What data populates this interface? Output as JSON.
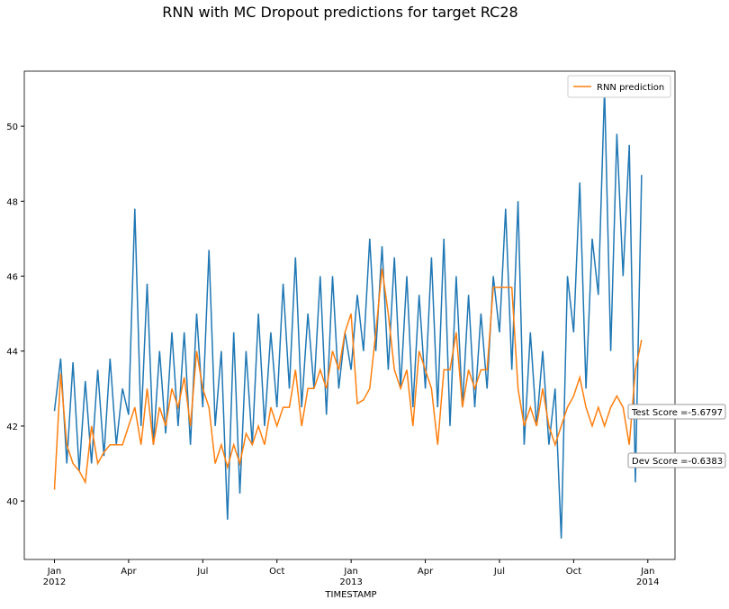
{
  "chart_data": {
    "type": "line",
    "title": "RNN with MC Dropout predictions for target RC28",
    "xlabel": "TIMESTAMP",
    "x": [
      0,
      0.25,
      0.5,
      0.75,
      1,
      1.25,
      1.5,
      1.75,
      2,
      2.25,
      2.5,
      2.75,
      3,
      3.25,
      3.5,
      3.75,
      4,
      4.25,
      4.5,
      4.75,
      5,
      5.25,
      5.5,
      5.75,
      6,
      6.25,
      6.5,
      6.75,
      7,
      7.25,
      7.5,
      7.75,
      8,
      8.25,
      8.5,
      8.75,
      9,
      9.25,
      9.5,
      9.75,
      10,
      10.25,
      10.5,
      10.75,
      11,
      11.25,
      11.5,
      11.75,
      12,
      12.25,
      12.5,
      12.75,
      13,
      13.25,
      13.5,
      13.75,
      14,
      14.25,
      14.5,
      14.75,
      15,
      15.25,
      15.5,
      15.75,
      16,
      16.25,
      16.5,
      16.75,
      17,
      17.25,
      17.5,
      17.75,
      18,
      18.25,
      18.5,
      18.75,
      19,
      19.25,
      19.5,
      19.75,
      20,
      20.25,
      20.5,
      20.75,
      21,
      21.25,
      21.5,
      21.75,
      22,
      22.25,
      22.5,
      22.75,
      23,
      23.25,
      23.5,
      23.75
    ],
    "series": [
      {
        "color": "#1f77b4",
        "values": [
          42.4,
          43.8,
          41.0,
          43.7,
          40.8,
          43.2,
          41.0,
          43.5,
          41.2,
          43.8,
          41.5,
          43.0,
          42.3,
          47.8,
          42.0,
          45.8,
          41.5,
          44.0,
          41.8,
          44.5,
          42.0,
          44.5,
          41.5,
          45.0,
          42.5,
          46.7,
          42.0,
          44.0,
          39.5,
          44.5,
          40.2,
          44.0,
          41.5,
          45.0,
          42.0,
          44.5,
          42.5,
          45.8,
          43.0,
          46.5,
          42.5,
          45.0,
          43.0,
          46.0,
          42.3,
          46.0,
          43.0,
          44.5,
          43.5,
          45.5,
          44.0,
          47.0,
          44.0,
          46.8,
          43.5,
          46.5,
          43.0,
          46.0,
          42.5,
          45.5,
          43.0,
          46.5,
          42.5,
          47.0,
          42.0,
          46.0,
          42.5,
          45.5,
          42.5,
          45.0,
          43.0,
          46.0,
          44.5,
          47.8,
          43.5,
          48.0,
          41.5,
          44.5,
          42.0,
          44.0,
          41.5,
          43.0,
          39.0,
          46.0,
          44.5,
          48.5,
          43.0,
          47.0,
          45.5,
          51.0,
          44.0,
          49.8,
          46.0,
          49.5,
          40.5,
          48.7
        ]
      },
      {
        "name": "RNN prediction",
        "color": "#ff7f0e",
        "values": [
          40.3,
          43.4,
          41.5,
          41.0,
          40.8,
          40.5,
          42.0,
          41.0,
          41.3,
          41.5,
          41.5,
          41.5,
          42.0,
          42.5,
          41.5,
          43.0,
          41.5,
          42.5,
          42.0,
          43.0,
          42.5,
          43.3,
          42.0,
          44.0,
          43.0,
          42.5,
          41.0,
          41.5,
          40.9,
          41.5,
          41.0,
          41.8,
          41.5,
          42.0,
          41.5,
          42.5,
          42.0,
          42.5,
          42.5,
          43.5,
          42.0,
          43.0,
          43.0,
          43.5,
          43.0,
          44.0,
          43.5,
          44.5,
          45.0,
          42.6,
          42.7,
          43.0,
          44.5,
          46.2,
          45.0,
          43.5,
          43.0,
          43.5,
          42.0,
          44.0,
          43.5,
          43.0,
          41.5,
          43.5,
          43.5,
          44.5,
          42.5,
          43.5,
          43.0,
          43.5,
          43.5,
          45.7,
          45.7,
          45.7,
          45.7,
          43.0,
          42.0,
          42.5,
          42.0,
          43.0,
          42.0,
          41.5,
          42.0,
          42.5,
          42.8,
          43.3,
          42.5,
          42.0,
          42.5,
          42.0,
          42.5,
          42.8,
          42.5,
          41.5,
          43.5,
          44.3
        ]
      }
    ],
    "xlim": [
      -1.22,
      25.1
    ],
    "xticks": [
      {
        "value": 0,
        "label": "Jan"
      },
      {
        "value": 3,
        "label": "Apr"
      },
      {
        "value": 6,
        "label": "Jul"
      },
      {
        "value": 9,
        "label": "Oct"
      },
      {
        "value": 12,
        "label": "Jan"
      },
      {
        "value": 15,
        "label": "Apr"
      },
      {
        "value": 18,
        "label": "Jul"
      },
      {
        "value": 21,
        "label": "Oct"
      },
      {
        "value": 24,
        "label": "Jan"
      }
    ],
    "x_year_labels": [
      {
        "value": 0,
        "label": "2012"
      },
      {
        "value": 12,
        "label": "2013"
      },
      {
        "value": 24,
        "label": "2014"
      }
    ],
    "ylim": [
      38.44,
      51.47
    ],
    "yticks": [
      40,
      42,
      44,
      46,
      48,
      50
    ],
    "grid": false,
    "legend": "upper right",
    "annotations": [
      "Test Score =-5.6797",
      "Dev Score =-0.6383"
    ]
  }
}
